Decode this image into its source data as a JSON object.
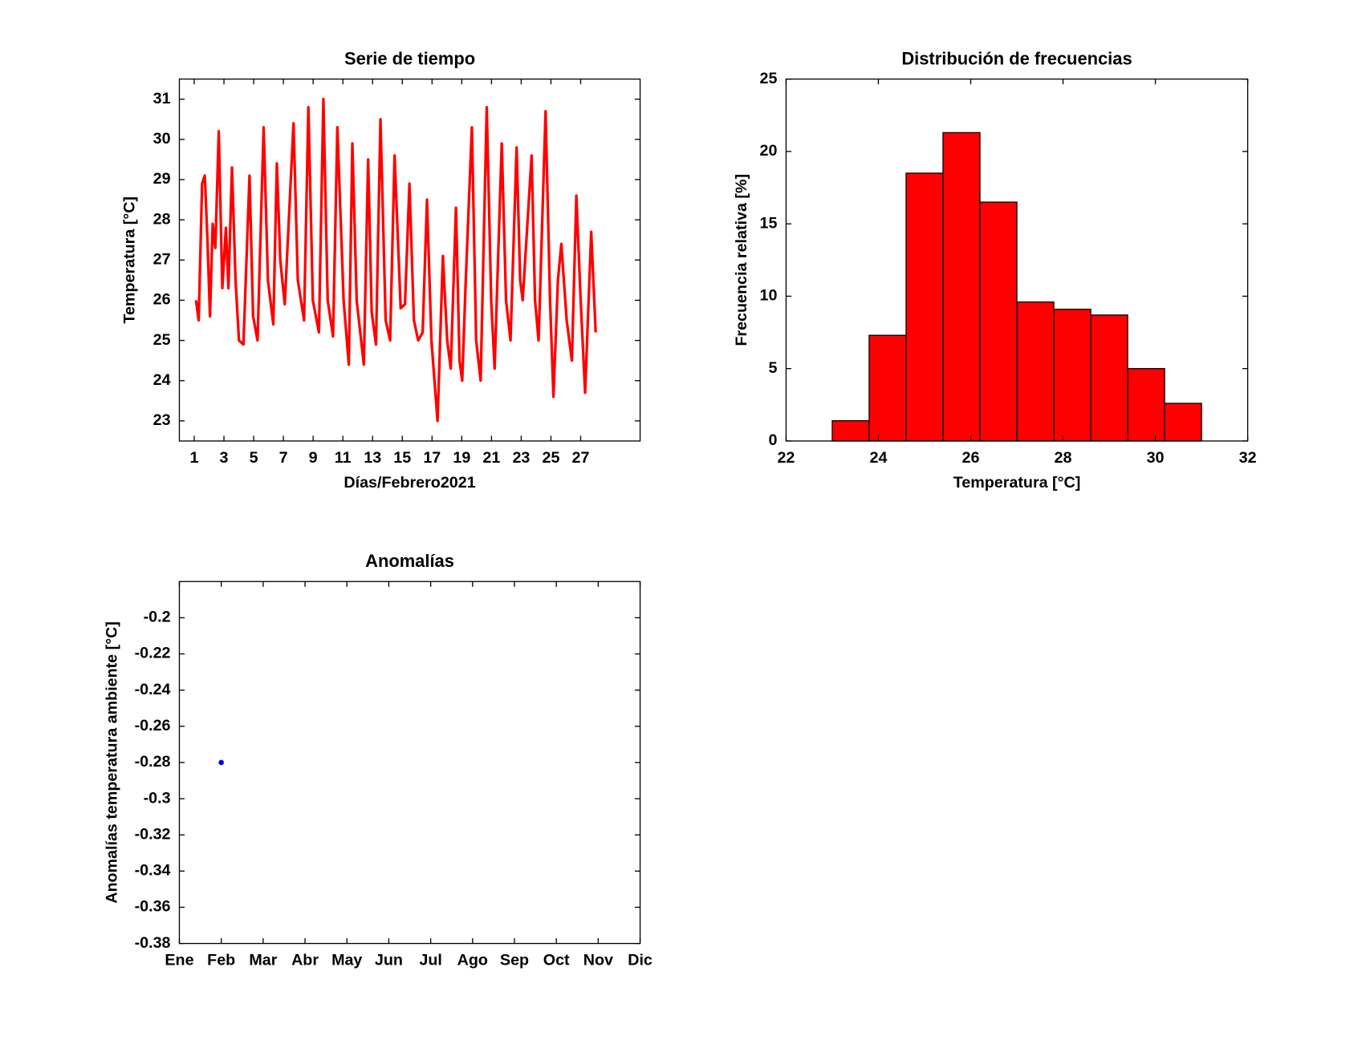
{
  "chart_data": [
    {
      "type": "line",
      "title": "Serie de tiempo",
      "xlabel": "Días/Febrero2021",
      "ylabel": "Temperatura [°C]",
      "color": "#ff0000",
      "x": [
        1.12,
        1.3,
        1.53,
        1.71,
        1.89,
        2.06,
        2.24,
        2.42,
        2.65,
        2.89,
        3.13,
        3.3,
        3.54,
        3.78,
        4.01,
        4.31,
        4.72,
        4.96,
        5.26,
        5.67,
        5.96,
        6.32,
        6.56,
        6.79,
        7.09,
        7.68,
        7.97,
        8.39,
        8.68,
        8.98,
        9.39,
        9.69,
        9.98,
        10.34,
        10.63,
        11.05,
        11.4,
        11.64,
        11.93,
        12.41,
        12.7,
        12.94,
        13.23,
        13.53,
        13.88,
        14.18,
        14.48,
        14.89,
        15.18,
        15.48,
        15.78,
        16.07,
        16.37,
        16.66,
        16.96,
        17.37,
        17.73,
        18.02,
        18.26,
        18.61,
        18.85,
        19.03,
        19.26,
        19.68,
        19.97,
        20.27,
        20.68,
        20.98,
        21.21,
        21.69,
        21.98,
        22.28,
        22.69,
        22.93,
        23.1,
        23.7,
        23.93,
        24.17,
        24.64,
        24.94,
        25.17,
        25.47,
        25.7,
        26.06,
        26.41,
        26.71,
        27.0,
        27.3,
        27.71,
        28.01
      ],
      "values": [
        26.0,
        25.5,
        28.9,
        29.1,
        27.5,
        25.6,
        27.9,
        27.3,
        30.2,
        26.3,
        27.8,
        26.3,
        29.3,
        26.5,
        25.0,
        24.9,
        29.1,
        25.6,
        25.0,
        30.3,
        26.5,
        25.4,
        29.4,
        27.0,
        25.9,
        30.4,
        26.5,
        25.5,
        30.8,
        26.0,
        25.2,
        31.0,
        26.0,
        25.1,
        30.3,
        26.0,
        24.4,
        29.9,
        26.0,
        24.4,
        29.5,
        25.7,
        24.9,
        30.5,
        25.5,
        25.0,
        29.6,
        25.8,
        25.9,
        28.9,
        25.5,
        25.0,
        25.2,
        28.5,
        25.0,
        23.0,
        27.1,
        25.0,
        24.3,
        28.3,
        24.5,
        24.0,
        26.4,
        30.3,
        25.0,
        24.0,
        30.8,
        26.0,
        24.3,
        29.9,
        26.0,
        25.0,
        29.8,
        26.5,
        26.0,
        29.6,
        26.0,
        25.0,
        30.7,
        26.0,
        23.6,
        26.5,
        27.4,
        25.5,
        24.5,
        28.6,
        26.0,
        23.7,
        27.7,
        25.2
      ],
      "xlim": [
        0,
        31
      ],
      "xticks": [
        1,
        3,
        5,
        7,
        9,
        11,
        13,
        15,
        17,
        19,
        21,
        23,
        25,
        27
      ],
      "ylim": [
        22.5,
        31.5
      ],
      "yticks": [
        23,
        24,
        25,
        26,
        27,
        28,
        29,
        30,
        31
      ]
    },
    {
      "type": "histogram",
      "title": "Distribución de frecuencias",
      "xlabel": "Temperatura [°C]",
      "ylabel": "Frecuencia relativa [%]",
      "color": "#ff0000",
      "bins": [
        23.0,
        23.8,
        24.6,
        25.4,
        26.2,
        27.0,
        27.8,
        28.6,
        29.4,
        30.2,
        31.0
      ],
      "values": [
        1.4,
        7.3,
        18.5,
        21.3,
        16.5,
        9.6,
        9.1,
        8.7,
        5.0,
        2.6
      ],
      "xlim": [
        22,
        32
      ],
      "xticks": [
        22,
        24,
        26,
        28,
        30,
        32
      ],
      "ylim": [
        0,
        25
      ],
      "yticks": [
        0,
        5,
        10,
        15,
        20,
        25
      ]
    },
    {
      "type": "scatter",
      "title": "Anomalías",
      "ylabel": "Anomalías temperatura ambiente [°C]",
      "color": "#0000ff",
      "categories": [
        "Ene",
        "Feb",
        "Mar",
        "Abr",
        "May",
        "Jun",
        "Jul",
        "Ago",
        "Sep",
        "Oct",
        "Nov",
        "Dic"
      ],
      "values": [
        null,
        -0.28,
        null,
        null,
        null,
        null,
        null,
        null,
        null,
        null,
        null,
        null
      ],
      "ylim": [
        -0.38,
        -0.18
      ],
      "yticks": [
        -0.2,
        -0.22,
        -0.24,
        -0.26,
        -0.28,
        -0.3,
        -0.32,
        -0.34,
        -0.36,
        -0.38
      ]
    }
  ]
}
